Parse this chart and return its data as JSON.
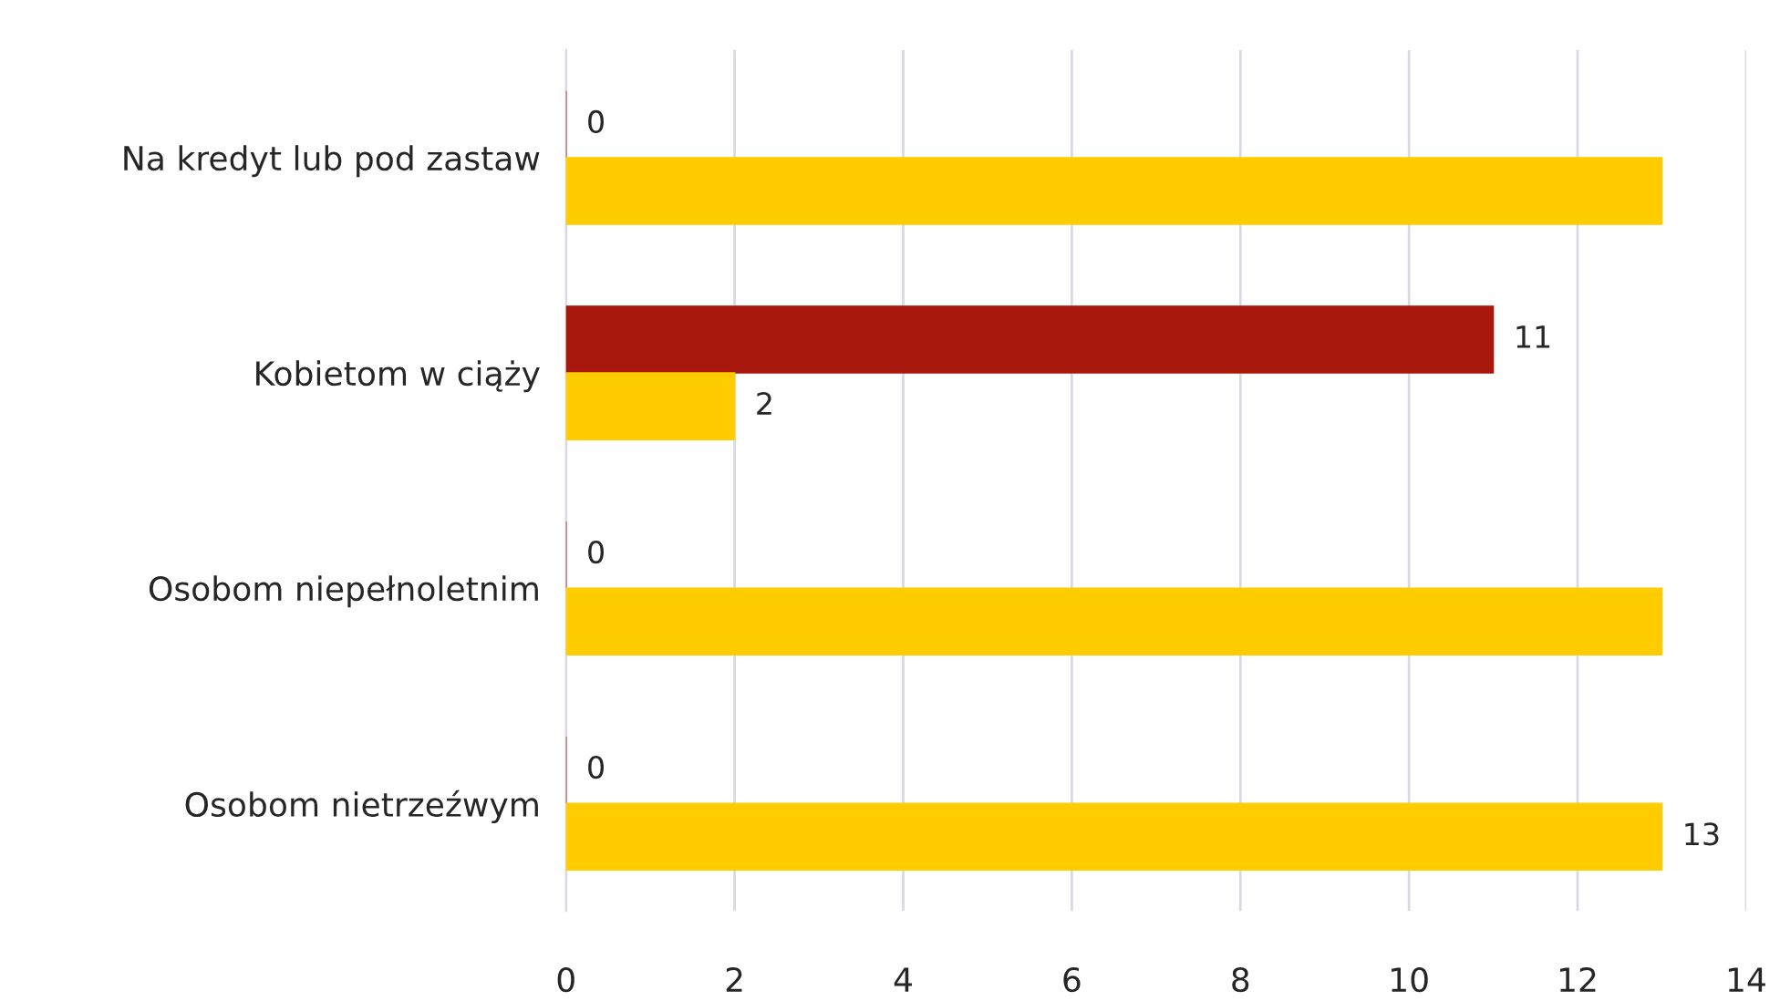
{
  "chart_data": {
    "type": "bar",
    "orientation": "horizontal",
    "categories": [
      "Na kredyt lub pod zastaw",
      "Kobietom w ciąży",
      "Osobom niepełnoletnim",
      "Osobom nietrzeźwym"
    ],
    "series": [
      {
        "color": "#a8180c",
        "values": [
          0,
          11,
          0,
          0
        ],
        "value_labels": [
          "0",
          "11",
          "0",
          "0"
        ]
      },
      {
        "color": "#ffcc00",
        "values": [
          13,
          2,
          13,
          13
        ],
        "value_labels": [
          null,
          "2",
          null,
          "13"
        ]
      }
    ],
    "xlim": [
      0,
      14
    ],
    "xticks": [
      0,
      2,
      4,
      6,
      8,
      10,
      12,
      14
    ],
    "grid": "x",
    "legend": false
  }
}
